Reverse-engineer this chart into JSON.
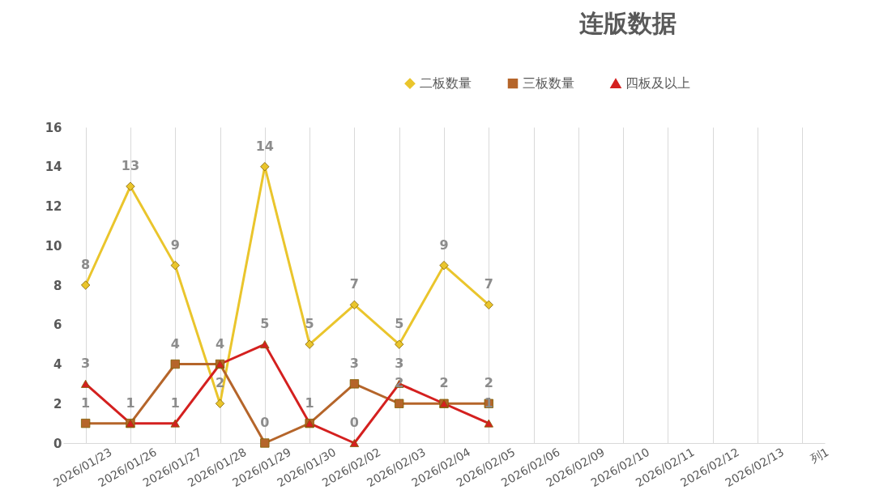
{
  "chart_data": {
    "type": "line",
    "title": "连版数据",
    "categories": [
      "2026/01/23",
      "2026/01/26",
      "2026/01/27",
      "2026/01/28",
      "2026/01/29",
      "2026/01/30",
      "2026/02/02",
      "2026/02/03",
      "2026/02/04",
      "2026/02/05",
      "2026/02/06",
      "2026/02/09",
      "2026/02/10",
      "2026/02/11",
      "2026/02/12",
      "2026/02/13",
      "列1"
    ],
    "series": [
      {
        "name": "二板数量",
        "color": "#eac52c",
        "marker": "diamond",
        "values": [
          8,
          13,
          9,
          2,
          14,
          5,
          7,
          5,
          9,
          7,
          null,
          null,
          null,
          null,
          null,
          null,
          null
        ]
      },
      {
        "name": "三板数量",
        "color": "#b5652a",
        "marker": "square",
        "values": [
          1,
          1,
          4,
          4,
          0,
          1,
          3,
          2,
          2,
          2,
          null,
          null,
          null,
          null,
          null,
          null,
          null
        ]
      },
      {
        "name": "四板及以上",
        "color": "#d4201f",
        "marker": "triangle",
        "values": [
          3,
          1,
          1,
          4,
          5,
          1,
          0,
          3,
          2,
          1,
          null,
          null,
          null,
          null,
          null,
          null,
          null
        ],
        "value_labels": [
          "3",
          null,
          "1",
          null,
          "5",
          null,
          "0",
          "3",
          null,
          "1",
          null,
          null,
          null,
          null,
          null,
          null,
          null
        ]
      }
    ],
    "ylim": [
      0,
      16
    ],
    "yticks": [
      0,
      2,
      4,
      6,
      8,
      10,
      12,
      14,
      16
    ],
    "grid": "x",
    "legend": "top right",
    "data_labels": true
  }
}
